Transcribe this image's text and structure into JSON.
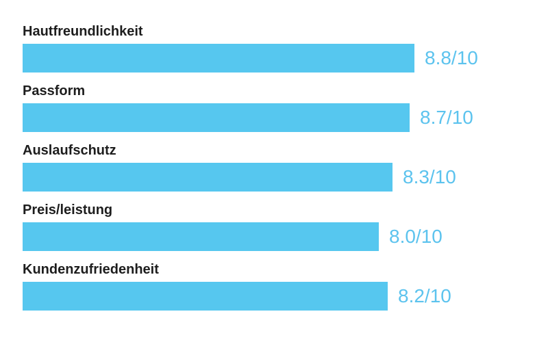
{
  "colors": {
    "bar": "#56c7ef",
    "value_text": "#5cc3ee",
    "label_text": "#1d1d1d",
    "background": "#ffffff"
  },
  "chart_data": {
    "type": "bar",
    "orientation": "horizontal",
    "title": "",
    "xlabel": "",
    "ylabel": "",
    "categories": [
      "Hautfreundlichkeit",
      "Passform",
      "Auslaufschutz",
      "Preis/leistung",
      "Kundenzufriedenheit"
    ],
    "values": [
      8.8,
      8.7,
      8.3,
      8.0,
      8.2
    ],
    "value_labels": [
      "8.8/10",
      "8.7/10",
      "8.3/10",
      "8.0/10",
      "8.2/10"
    ],
    "scale_max": 10,
    "xlim": [
      0,
      10
    ],
    "grid": false,
    "legend": false,
    "value_label_position": "right-of-bar"
  }
}
